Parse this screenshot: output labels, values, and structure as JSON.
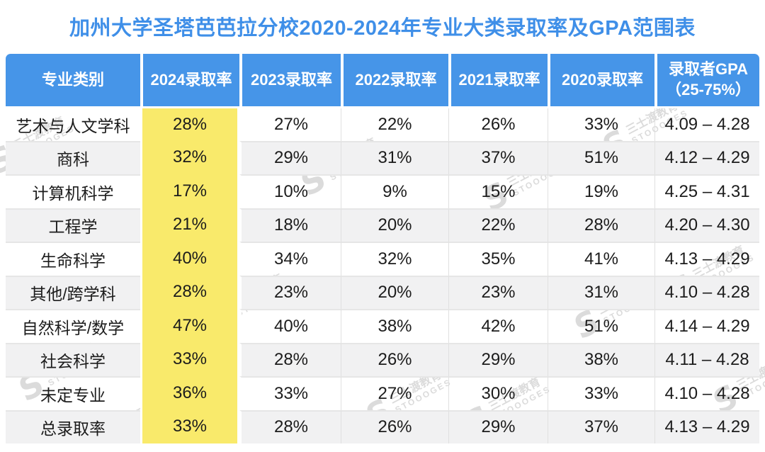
{
  "title": "加州大学圣塔芭芭拉分校2020-2024年专业大类录取率及GPA范围表",
  "header": {
    "gpa_line1": "录取者GPA",
    "gpa_line2": "（25-75%）"
  },
  "watermark": {
    "logo": "S",
    "brand_cn": "三士渡教育",
    "brand_en": "STOOOGES"
  },
  "colors": {
    "title": "#3f8fe8",
    "header_bg": "#4695e8",
    "header_text": "#ffffff",
    "highlight": "#f9ea6b",
    "row_alt": "#f1f1f2",
    "body_text": "#1c1c1c",
    "grid_line": "#e0e0e0"
  },
  "chart_data": {
    "type": "table",
    "title": "加州大学圣塔芭芭拉分校2020-2024年专业大类录取率及GPA范围表",
    "columns": [
      "专业类别",
      "2024录取率",
      "2023录取率",
      "2022录取率",
      "2021录取率",
      "2020录取率",
      "录取者GPA（25-75%）"
    ],
    "highlighted_column": "2024录取率",
    "rows": [
      [
        "艺术与人文学科",
        "28%",
        "27%",
        "22%",
        "26%",
        "33%",
        "4.09 – 4.28"
      ],
      [
        "商科",
        "32%",
        "29%",
        "31%",
        "37%",
        "51%",
        "4.12 – 4.29"
      ],
      [
        "计算机科学",
        "17%",
        "10%",
        "9%",
        "15%",
        "19%",
        "4.25 – 4.31"
      ],
      [
        "工程学",
        "21%",
        "18%",
        "20%",
        "22%",
        "28%",
        "4.20 – 4.30"
      ],
      [
        "生命科学",
        "40%",
        "34%",
        "32%",
        "35%",
        "41%",
        "4.13 – 4.29"
      ],
      [
        "其他/跨学科",
        "28%",
        "23%",
        "20%",
        "23%",
        "31%",
        "4.10 – 4.28"
      ],
      [
        "自然科学/数学",
        "47%",
        "40%",
        "38%",
        "42%",
        "51%",
        "4.14 – 4.29"
      ],
      [
        "社会科学",
        "33%",
        "28%",
        "26%",
        "29%",
        "38%",
        "4.11 – 4.28"
      ],
      [
        "未定专业",
        "36%",
        "33%",
        "27%",
        "30%",
        "33%",
        "4.10 – 4.28"
      ],
      [
        "总录取率",
        "33%",
        "28%",
        "26%",
        "29%",
        "37%",
        "4.13 – 4.29"
      ]
    ]
  }
}
